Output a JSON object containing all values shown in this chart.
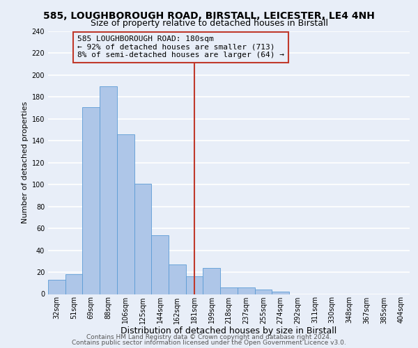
{
  "title1": "585, LOUGHBOROUGH ROAD, BIRSTALL, LEICESTER, LE4 4NH",
  "title2": "Size of property relative to detached houses in Birstall",
  "xlabel": "Distribution of detached houses by size in Birstall",
  "ylabel": "Number of detached properties",
  "bin_labels": [
    "32sqm",
    "51sqm",
    "69sqm",
    "88sqm",
    "106sqm",
    "125sqm",
    "144sqm",
    "162sqm",
    "181sqm",
    "199sqm",
    "218sqm",
    "237sqm",
    "255sqm",
    "274sqm",
    "292sqm",
    "311sqm",
    "330sqm",
    "348sqm",
    "367sqm",
    "385sqm",
    "404sqm"
  ],
  "bin_values": [
    13,
    18,
    171,
    190,
    146,
    101,
    54,
    27,
    16,
    24,
    6,
    6,
    4,
    2,
    0,
    0,
    0,
    0,
    0,
    0,
    0
  ],
  "bar_color": "#aec6e8",
  "bar_edgecolor": "#5b9bd5",
  "vline_x_index": 8,
  "vline_color": "#c0392b",
  "annotation_line1": "585 LOUGHBOROUGH ROAD: 180sqm",
  "annotation_line2": "← 92% of detached houses are smaller (713)",
  "annotation_line3": "8% of semi-detached houses are larger (64) →",
  "annotation_box_edgecolor": "#c0392b",
  "ylim": [
    0,
    240
  ],
  "yticks": [
    0,
    20,
    40,
    60,
    80,
    100,
    120,
    140,
    160,
    180,
    200,
    220,
    240
  ],
  "footer1": "Contains HM Land Registry data © Crown copyright and database right 2024.",
  "footer2": "Contains public sector information licensed under the Open Government Licence v3.0.",
  "background_color": "#e8eef8",
  "plot_background_color": "#e8eef8",
  "grid_color": "#ffffff",
  "title1_fontsize": 10,
  "title2_fontsize": 9,
  "xlabel_fontsize": 9,
  "ylabel_fontsize": 8,
  "tick_fontsize": 7,
  "annotation_fontsize": 8,
  "footer_fontsize": 6.5
}
